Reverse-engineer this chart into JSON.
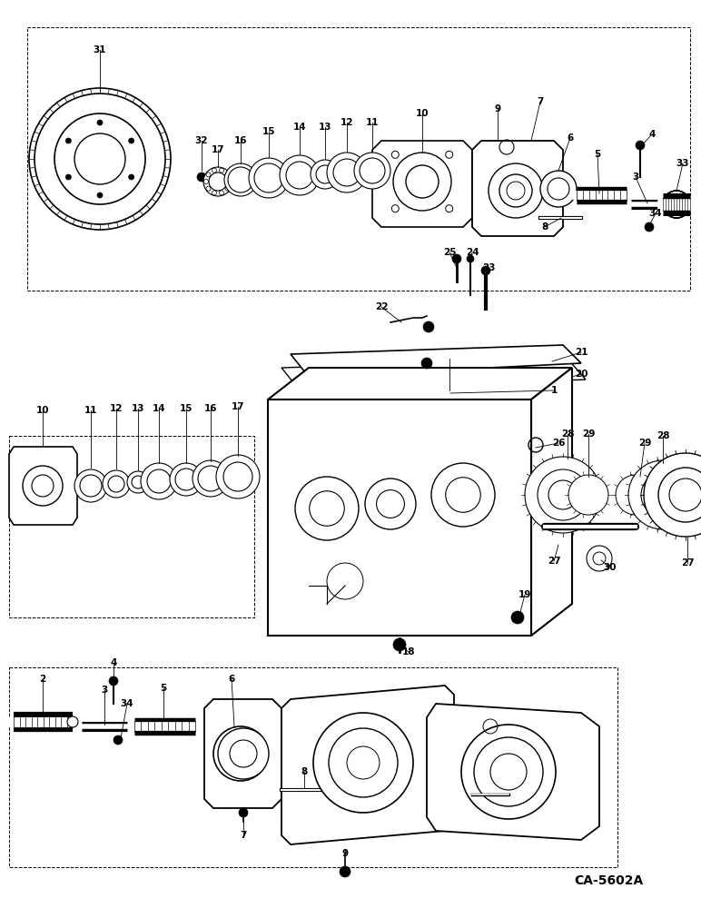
{
  "bg_color": "#ffffff",
  "line_color": "#000000",
  "fig_width": 7.72,
  "fig_height": 10.0,
  "watermark": "CA-5602A",
  "dpi": 100
}
